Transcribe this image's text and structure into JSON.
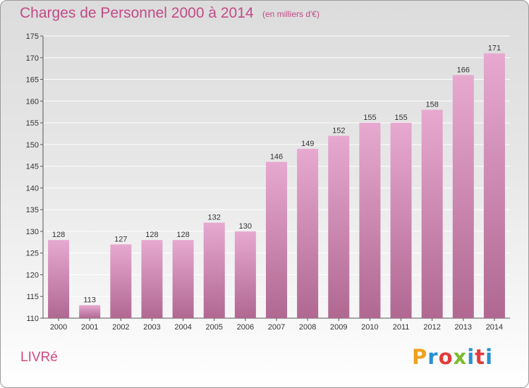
{
  "header": {
    "title": "Charges de Personnel 2000 à 2014",
    "subtitle": "(en milliers d'€)"
  },
  "footer": {
    "place": "LIVRé",
    "logo_text": "Proxiti"
  },
  "colors": {
    "title": "#c24a86",
    "bar_top": "#e7a9d0",
    "bar_bottom": "#b06891",
    "place": "#d2477f",
    "logo": [
      "#f0a11e",
      "#2a8fd0",
      "#e23b3b",
      "#7dbb2e",
      "#2a8fd0",
      "#e23b3b",
      "#2a8fd0"
    ]
  },
  "chart_data": {
    "type": "bar",
    "title": "Charges de Personnel 2000 à 2014",
    "subtitle": "(en milliers d'€)",
    "categories": [
      "2000",
      "2001",
      "2002",
      "2003",
      "2004",
      "2005",
      "2006",
      "2007",
      "2008",
      "2009",
      "2010",
      "2011",
      "2012",
      "2013",
      "2014"
    ],
    "values": [
      128,
      113,
      127,
      128,
      128,
      132,
      130,
      146,
      149,
      152,
      155,
      155,
      158,
      166,
      171
    ],
    "ylim": [
      110,
      175
    ],
    "yticks": [
      110,
      115,
      120,
      125,
      130,
      135,
      140,
      145,
      150,
      155,
      160,
      165,
      170,
      175
    ],
    "grid": true,
    "xlabel": "",
    "ylabel": ""
  }
}
